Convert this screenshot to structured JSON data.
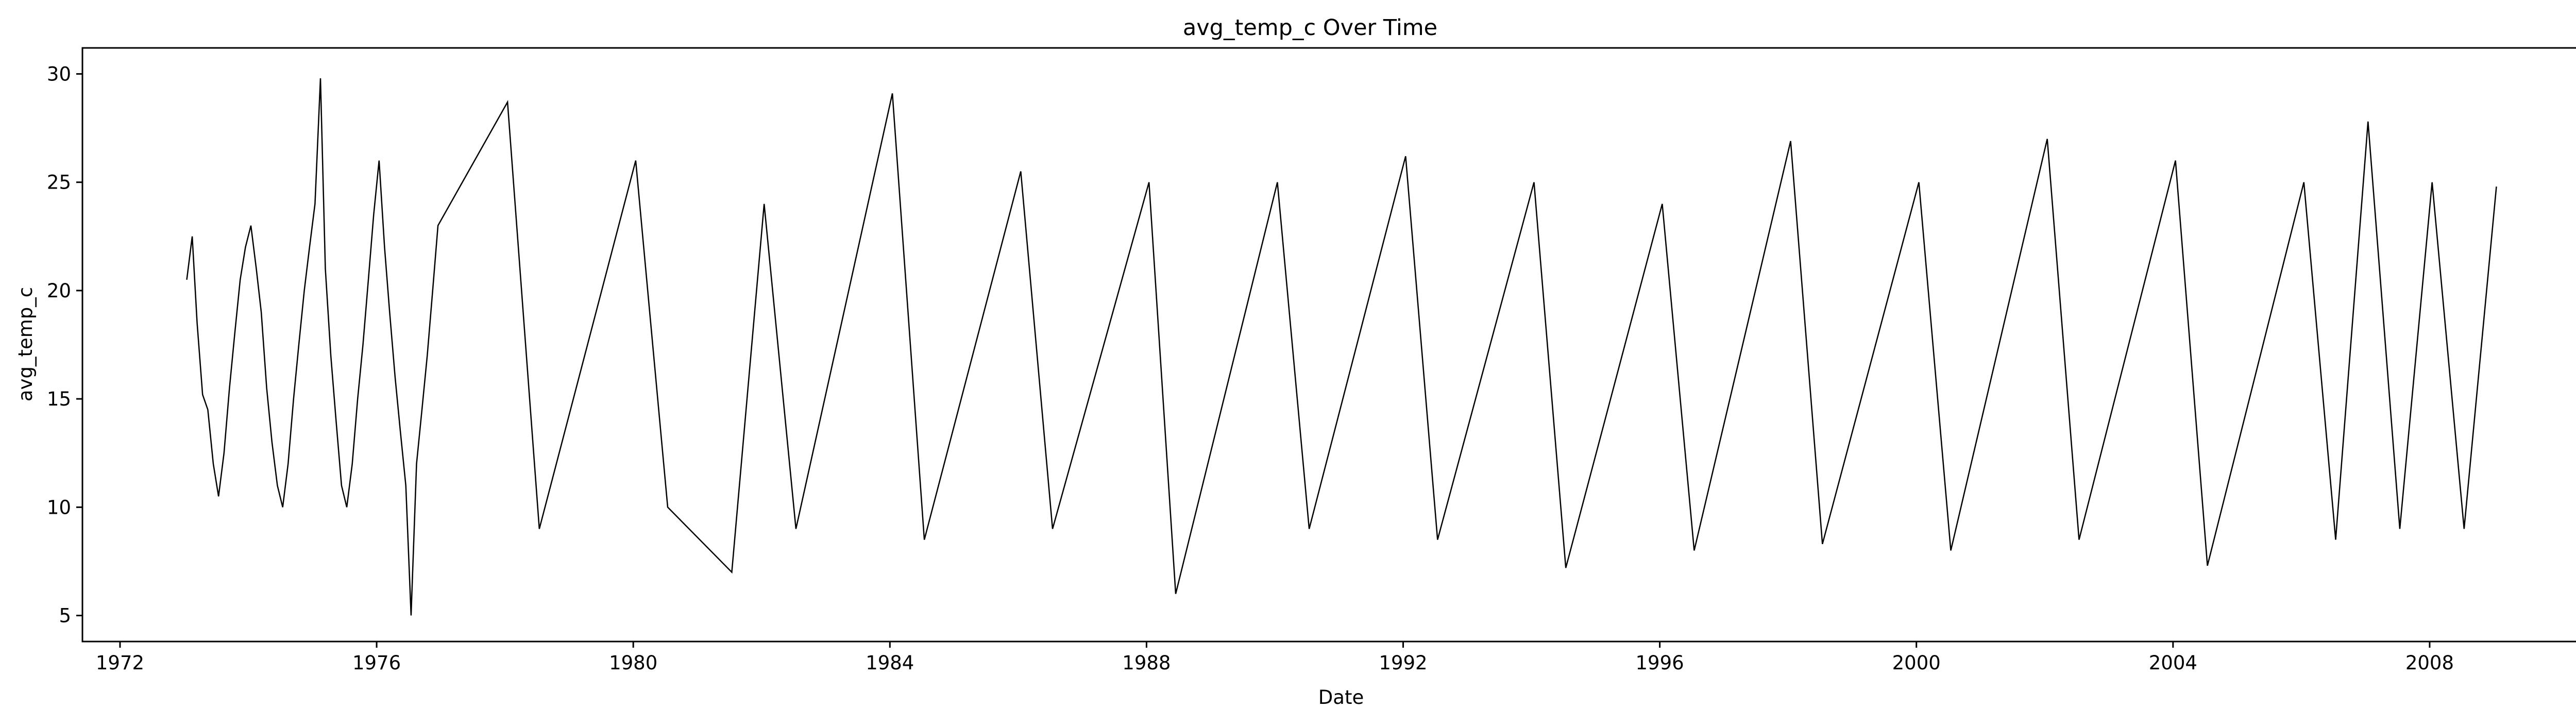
{
  "chart_data": {
    "type": "line",
    "title": "avg_temp_c Over Time",
    "xlabel": "Date",
    "ylabel": "avg_temp_c",
    "xlim": [
      "1971-06-01",
      "2010-09-01"
    ],
    "ylim": [
      3.8,
      31.2
    ],
    "x_ticks": [
      "1972",
      "1976",
      "1980",
      "1984",
      "1988",
      "1992",
      "1996",
      "2000",
      "2004",
      "2008"
    ],
    "y_ticks": [
      "5",
      "10",
      "15",
      "20",
      "25",
      "30"
    ],
    "grid": false,
    "legend": "none",
    "line_color": "#000000",
    "series": [
      {
        "x": [
          "1973-01-15",
          "1973-02-15",
          "1973-03-15",
          "1973-04-15",
          "1973-05-15",
          "1973-06-15",
          "1973-07-15",
          "1973-08-15",
          "1973-09-15",
          "1973-10-15",
          "1973-11-15",
          "1973-12-15",
          "1974-01-15",
          "1974-02-15",
          "1974-03-15",
          "1974-04-15",
          "1974-05-15",
          "1974-06-15",
          "1974-07-15",
          "1974-08-15",
          "1974-09-15",
          "1974-10-15",
          "1974-11-15",
          "1974-12-15",
          "1975-01-15",
          "1975-02-15",
          "1975-03-15",
          "1975-04-15",
          "1975-05-15",
          "1975-06-15",
          "1975-07-15",
          "1975-08-15",
          "1975-09-15",
          "1975-10-15",
          "1975-11-15",
          "1975-12-15",
          "1976-01-15",
          "1976-02-15",
          "1976-03-15",
          "1976-04-15",
          "1976-05-15",
          "1976-06-15",
          "1976-07-15",
          "1976-08-15",
          "1976-09-15",
          "1976-10-15",
          "1976-11-15",
          "1976-12-15",
          "1978-01-15",
          "1978-07-15",
          "1980-01-15",
          "1980-07-15",
          "1981-07-15",
          "1982-01-15",
          "1982-07-15",
          "1984-01-15",
          "1984-07-15",
          "1986-01-15",
          "1986-07-15",
          "1988-01-15",
          "1988-06-15",
          "1990-01-15",
          "1990-07-15",
          "1992-01-15",
          "1992-07-15",
          "1994-01-15",
          "1994-07-15",
          "1996-01-15",
          "1996-07-15",
          "1998-01-15",
          "1998-07-15",
          "2000-01-15",
          "2000-07-15",
          "2002-01-15",
          "2002-07-15",
          "2004-01-15",
          "2004-07-15",
          "2006-01-15",
          "2006-07-15",
          "2007-01-15",
          "2007-07-15",
          "2008-01-15",
          "2008-07-15",
          "2009-01-15"
        ],
        "y": [
          20.5,
          22.5,
          18.5,
          15.2,
          14.5,
          12.0,
          10.5,
          12.5,
          15.5,
          18.0,
          20.5,
          22.0,
          23.0,
          21.0,
          19.0,
          15.5,
          13.0,
          11.0,
          10.0,
          12.0,
          15.0,
          17.5,
          20.0,
          22.0,
          24.0,
          29.8,
          21.0,
          17.0,
          14.0,
          11.0,
          10.0,
          12.0,
          15.0,
          17.5,
          20.5,
          23.5,
          26.0,
          22.0,
          19.0,
          16.0,
          13.5,
          11.0,
          5.0,
          12.0,
          14.5,
          17.0,
          20.0,
          23.0,
          28.7,
          9.0,
          26.0,
          10.0,
          7.0,
          24.0,
          9.0,
          29.1,
          8.5,
          25.5,
          9.0,
          25.0,
          6.0,
          25.0,
          9.0,
          26.2,
          8.5,
          25.0,
          7.2,
          24.0,
          8.0,
          26.9,
          8.3,
          25.0,
          8.0,
          27.0,
          8.5,
          26.0,
          7.3,
          25.0,
          8.5,
          27.8,
          9.0,
          25.0,
          9.0,
          24.8
        ]
      }
    ]
  }
}
